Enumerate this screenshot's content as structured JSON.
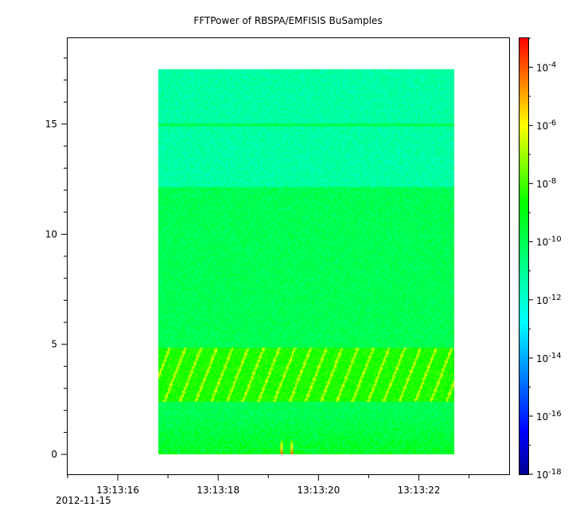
{
  "chart_data": {
    "type": "heatmap",
    "title": "FFTPower of RBSPA/EMFISIS  BuSamples",
    "xlabel": "",
    "ylabel": "",
    "x_tick_labels": [
      "13:13:16",
      "13:13:18",
      "13:13:20",
      "13:13:22"
    ],
    "x_tick_values_sec": [
      16,
      18,
      20,
      22
    ],
    "x_axis_date": "2012-11-15",
    "xlim_sec": [
      15.0,
      23.8
    ],
    "data_xrange_sec": [
      16.8,
      22.7
    ],
    "y_tick_labels": [
      "0",
      "5",
      "10",
      "15"
    ],
    "y_tick_values": [
      0,
      5,
      10,
      15
    ],
    "ylim": [
      -0.9,
      18.9
    ],
    "data_yrange": [
      0,
      17.5
    ],
    "colorbar": {
      "scale": "log",
      "range": [
        1e-18,
        0.001
      ],
      "tick_base": "10",
      "tick_exponents": [
        "-4",
        "-6",
        "-8",
        "-10",
        "-12",
        "-14",
        "-16",
        "-18"
      ],
      "tick_values": [
        0.0001,
        1e-06,
        1e-08,
        1e-10,
        1e-12,
        1e-14,
        1e-16,
        1e-18
      ],
      "colormap": [
        "#00008f",
        "#0000ff",
        "#00ffff",
        "#00ff00",
        "#ffff00",
        "#ff7f00",
        "#ff0000"
      ]
    },
    "features": {
      "background_low_band": {
        "y_range": [
          0,
          12.2
        ],
        "level_log10": -10
      },
      "background_high_band": {
        "y_range": [
          12.2,
          17.5
        ],
        "level_log10": -11.3
      },
      "line_15": {
        "y": 15,
        "level_log10": -10
      },
      "chorus_band": {
        "y_range": [
          2.4,
          4.9
        ],
        "level_log10": -7.5
      },
      "low_freq_enhancement": {
        "y_range": [
          0,
          1.8
        ],
        "level_log10": -8.5
      },
      "spikes_x_sec": [
        19.25,
        19.45
      ]
    }
  }
}
